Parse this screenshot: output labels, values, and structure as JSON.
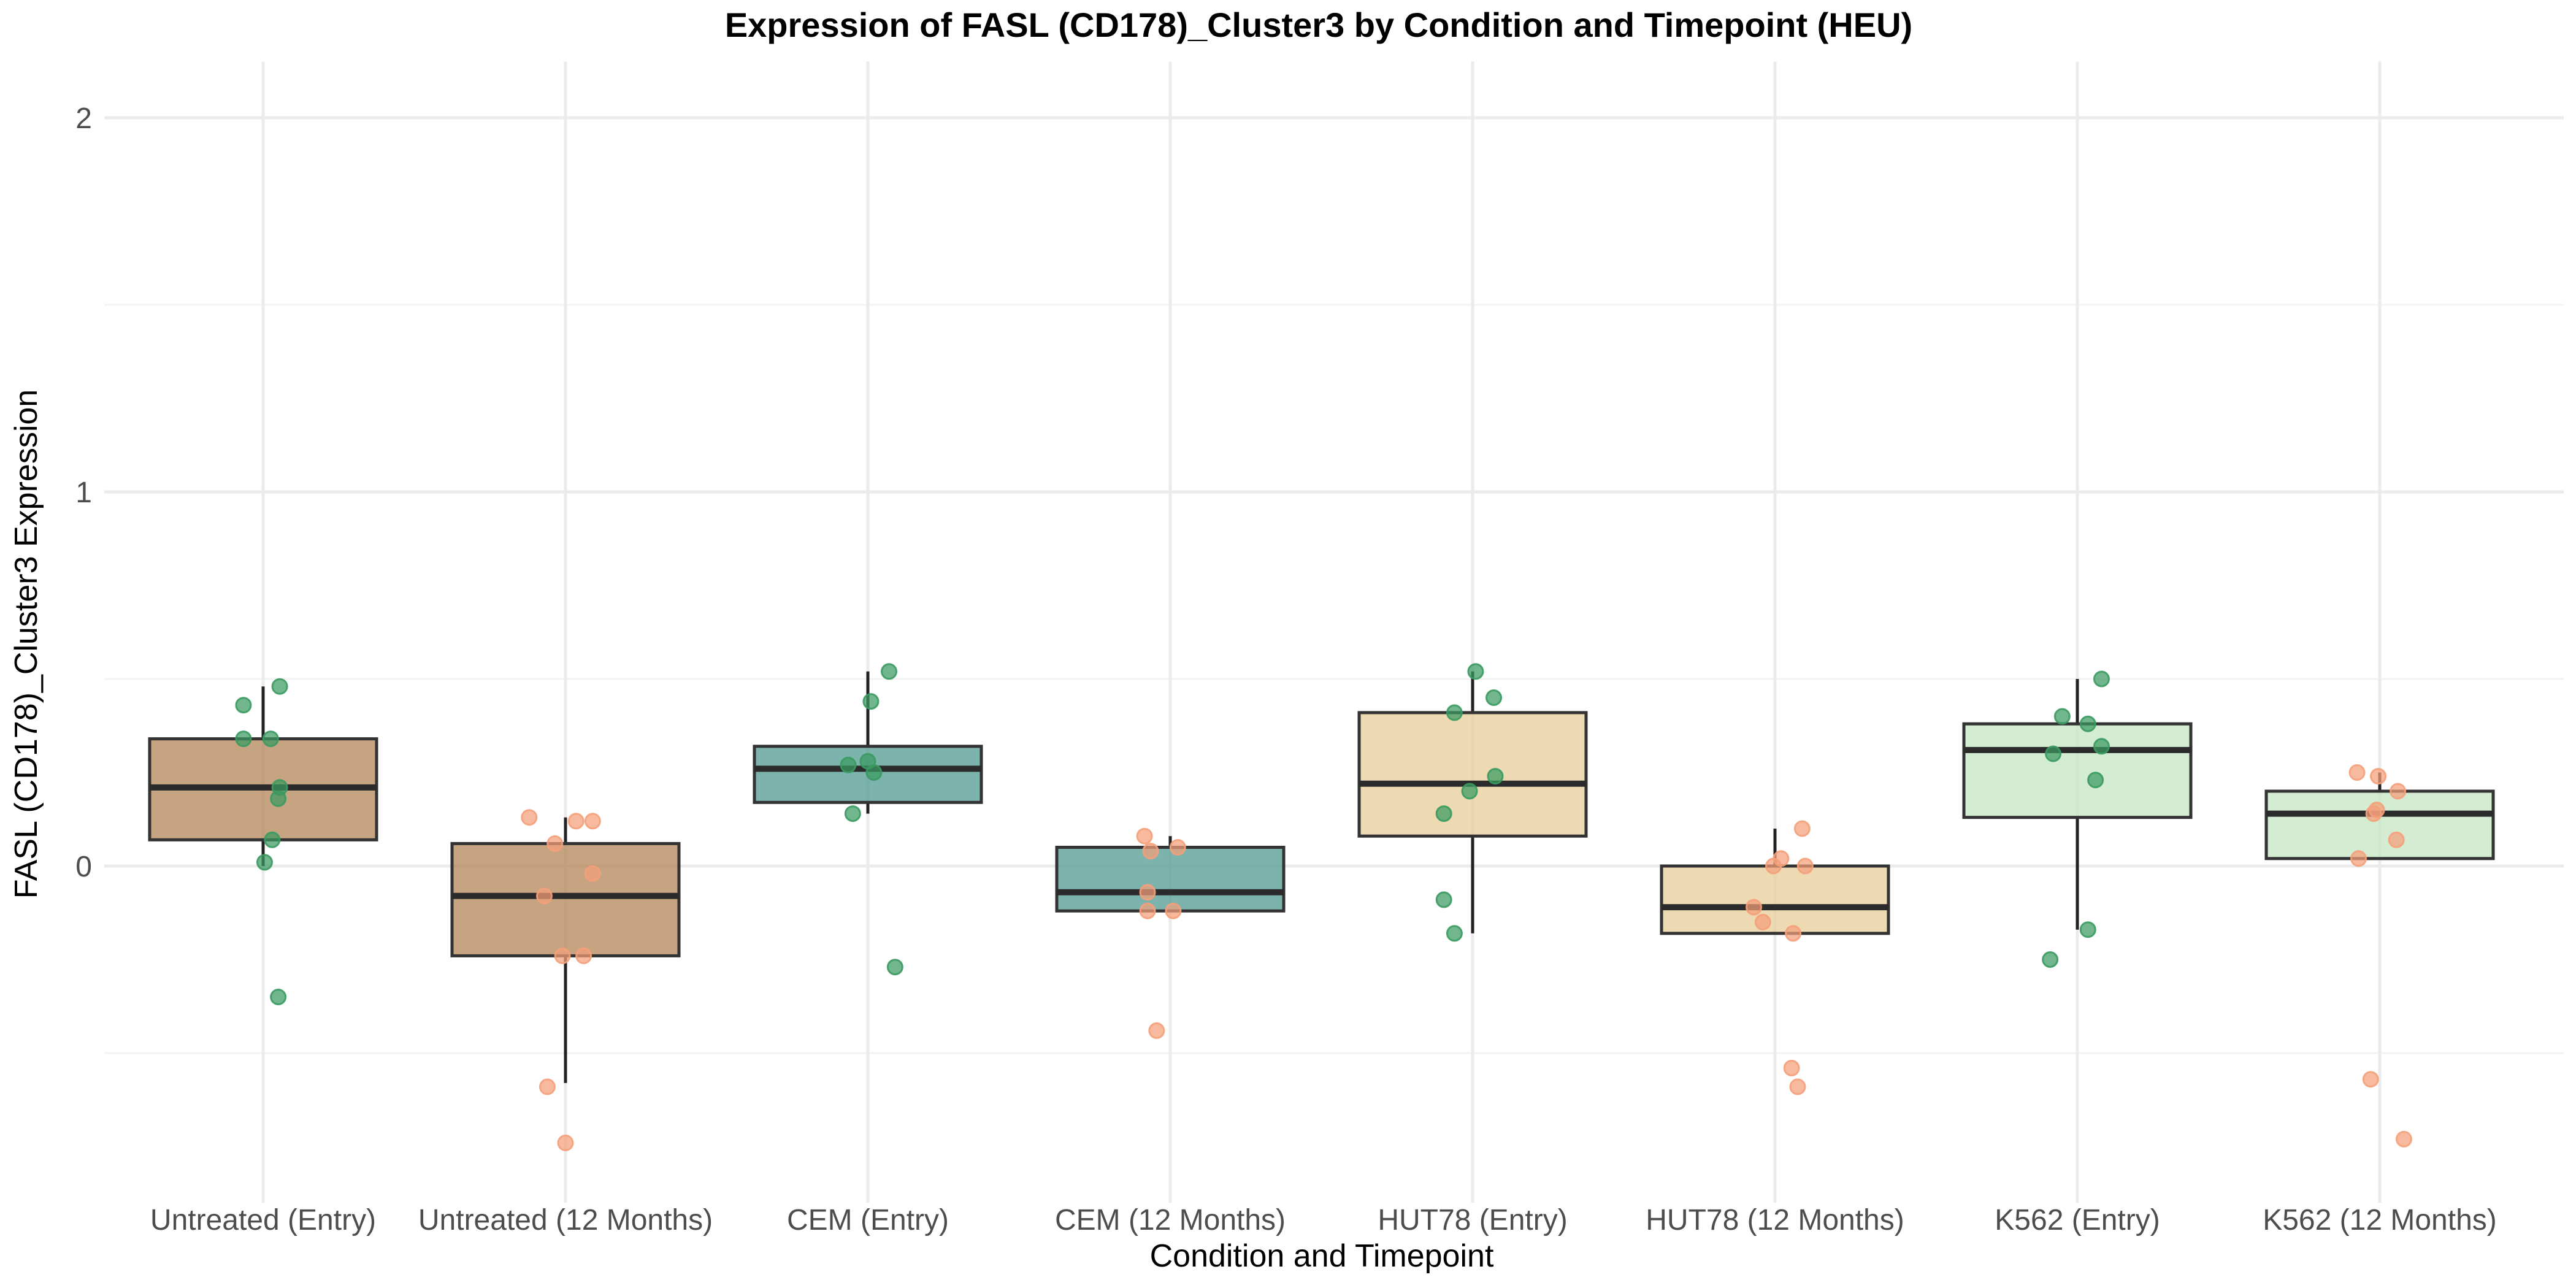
{
  "chart_data": {
    "type": "box",
    "title": "Expression of FASL (CD178)_Cluster3 by Condition and Timepoint (HEU)",
    "xlabel": "Condition and Timepoint",
    "ylabel": "FASL (CD178)_Cluster3 Expression",
    "ylim": [
      -0.9,
      2.15
    ],
    "yticks": [
      0,
      1,
      2
    ],
    "grid": true,
    "categories": [
      "Untreated (Entry)",
      "Untreated (12 Months)",
      "CEM (Entry)",
      "CEM (12 Months)",
      "HUT78 (Entry)",
      "HUT78 (12 Months)",
      "K562 (Entry)",
      "K562 (12 Months)"
    ],
    "box_colors": [
      "#b08050",
      "#b08050",
      "#4a968e",
      "#4a968e",
      "#e6cc94",
      "#e6cc94",
      "#c4e6c0",
      "#c4e6c0"
    ],
    "point_colors": {
      "Entry": "#3a9a60",
      "12 Months": "#f4a07a"
    },
    "boxes": [
      {
        "q1": 0.07,
        "median": 0.21,
        "q3": 0.34,
        "whisker_low": 0.0,
        "whisker_high": 0.48
      },
      {
        "q1": -0.24,
        "median": -0.08,
        "q3": 0.06,
        "whisker_low": -0.58,
        "whisker_high": 0.13
      },
      {
        "q1": 0.17,
        "median": 0.26,
        "q3": 0.32,
        "whisker_low": 0.14,
        "whisker_high": 0.52
      },
      {
        "q1": -0.12,
        "median": -0.07,
        "q3": 0.05,
        "whisker_low": -0.12,
        "whisker_high": 0.08
      },
      {
        "q1": 0.08,
        "median": 0.22,
        "q3": 0.41,
        "whisker_low": -0.18,
        "whisker_high": 0.52
      },
      {
        "q1": -0.18,
        "median": -0.11,
        "q3": 0.0,
        "whisker_low": -0.18,
        "whisker_high": 0.1
      },
      {
        "q1": 0.13,
        "median": 0.31,
        "q3": 0.38,
        "whisker_low": -0.17,
        "whisker_high": 0.5
      },
      {
        "q1": 0.02,
        "median": 0.14,
        "q3": 0.2,
        "whisker_low": 0.02,
        "whisker_high": 0.25
      }
    ],
    "points": [
      [
        [
          -0.065,
          0.43
        ],
        [
          0.055,
          0.48
        ],
        [
          -0.065,
          0.34
        ],
        [
          0.025,
          0.34
        ],
        [
          0.055,
          0.21
        ],
        [
          0.05,
          0.18
        ],
        [
          0.03,
          0.07
        ],
        [
          0.005,
          0.01
        ],
        [
          0.05,
          -0.35
        ]
      ],
      [
        [
          -0.12,
          0.13
        ],
        [
          0.035,
          0.12
        ],
        [
          0.09,
          0.12
        ],
        [
          -0.035,
          0.06
        ],
        [
          0.09,
          -0.02
        ],
        [
          -0.07,
          -0.08
        ],
        [
          -0.01,
          -0.24
        ],
        [
          0.06,
          -0.24
        ],
        [
          -0.06,
          -0.59
        ],
        [
          0.0,
          -0.74
        ]
      ],
      [
        [
          0.07,
          0.52
        ],
        [
          0.01,
          0.44
        ],
        [
          -0.065,
          0.27
        ],
        [
          0.0,
          0.28
        ],
        [
          0.02,
          0.25
        ],
        [
          -0.05,
          0.14
        ],
        [
          0.09,
          -0.27
        ]
      ],
      [
        [
          -0.085,
          0.08
        ],
        [
          -0.065,
          0.04
        ],
        [
          0.025,
          0.05
        ],
        [
          -0.075,
          -0.07
        ],
        [
          -0.075,
          -0.12
        ],
        [
          0.01,
          -0.12
        ],
        [
          -0.045,
          -0.44
        ]
      ],
      [
        [
          0.01,
          0.52
        ],
        [
          0.07,
          0.45
        ],
        [
          -0.06,
          0.41
        ],
        [
          0.075,
          0.24
        ],
        [
          -0.01,
          0.2
        ],
        [
          -0.095,
          0.14
        ],
        [
          -0.095,
          -0.09
        ],
        [
          -0.06,
          -0.18
        ]
      ],
      [
        [
          0.09,
          0.1
        ],
        [
          0.02,
          0.02
        ],
        [
          -0.005,
          0.0
        ],
        [
          0.1,
          0.0
        ],
        [
          -0.07,
          -0.11
        ],
        [
          -0.04,
          -0.15
        ],
        [
          0.06,
          -0.18
        ],
        [
          0.055,
          -0.54
        ],
        [
          0.075,
          -0.59
        ]
      ],
      [
        [
          0.08,
          0.5
        ],
        [
          -0.05,
          0.4
        ],
        [
          0.035,
          0.38
        ],
        [
          0.08,
          0.32
        ],
        [
          -0.08,
          0.3
        ],
        [
          0.06,
          0.23
        ],
        [
          0.035,
          -0.17
        ],
        [
          -0.09,
          -0.25
        ]
      ],
      [
        [
          -0.075,
          0.25
        ],
        [
          -0.005,
          0.24
        ],
        [
          0.06,
          0.2
        ],
        [
          -0.01,
          0.15
        ],
        [
          -0.02,
          0.14
        ],
        [
          0.055,
          0.07
        ],
        [
          -0.07,
          0.02
        ],
        [
          -0.03,
          -0.57
        ],
        [
          0.08,
          -0.73
        ]
      ]
    ]
  }
}
